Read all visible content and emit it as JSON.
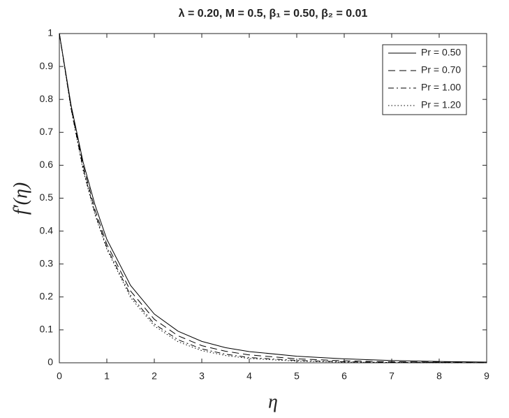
{
  "chart_data": {
    "type": "line",
    "title": "λ = 0.20, M = 0.5, β₁ = 0.50, β₂ = 0.01",
    "x_label": "η",
    "y_label": "f′(η)",
    "x": [
      0,
      0.25,
      0.5,
      0.75,
      1,
      1.5,
      2,
      2.5,
      3,
      3.5,
      4,
      5,
      6,
      7,
      8,
      9
    ],
    "series": [
      {
        "name": "Pr = 0.50",
        "color": "#000000",
        "style": "solid",
        "values": [
          1,
          0.78,
          0.61,
          0.48,
          0.375,
          0.235,
          0.148,
          0.096,
          0.065,
          0.046,
          0.034,
          0.02,
          0.012,
          0.007,
          0.004,
          0.002
        ]
      },
      {
        "name": "Pr = 0.70",
        "color": "#000000",
        "style": "dashed",
        "values": [
          1,
          0.775,
          0.6,
          0.465,
          0.36,
          0.218,
          0.132,
          0.082,
          0.052,
          0.035,
          0.024,
          0.012,
          0.006,
          0.003,
          0.002,
          0.001
        ]
      },
      {
        "name": "Pr = 1.00",
        "color": "#000000",
        "style": "dashdot",
        "values": [
          1,
          0.77,
          0.59,
          0.455,
          0.35,
          0.205,
          0.118,
          0.07,
          0.042,
          0.026,
          0.016,
          0.007,
          0.003,
          0.001,
          0.001,
          0
        ]
      },
      {
        "name": "Pr = 1.20",
        "color": "#000000",
        "style": "dotted",
        "values": [
          1,
          0.768,
          0.585,
          0.45,
          0.345,
          0.198,
          0.112,
          0.064,
          0.037,
          0.022,
          0.013,
          0.005,
          0.002,
          0.001,
          0,
          0
        ]
      }
    ],
    "xlim": [
      0,
      9
    ],
    "xticks": [
      0,
      1,
      2,
      3,
      4,
      5,
      6,
      7,
      8,
      9
    ],
    "ylim": [
      0,
      1
    ],
    "yticks": [
      0,
      0.1,
      0.2,
      0.3,
      0.4,
      0.5,
      0.6,
      0.7,
      0.8,
      0.9,
      1
    ],
    "grid": false,
    "legend": "top-right"
  }
}
